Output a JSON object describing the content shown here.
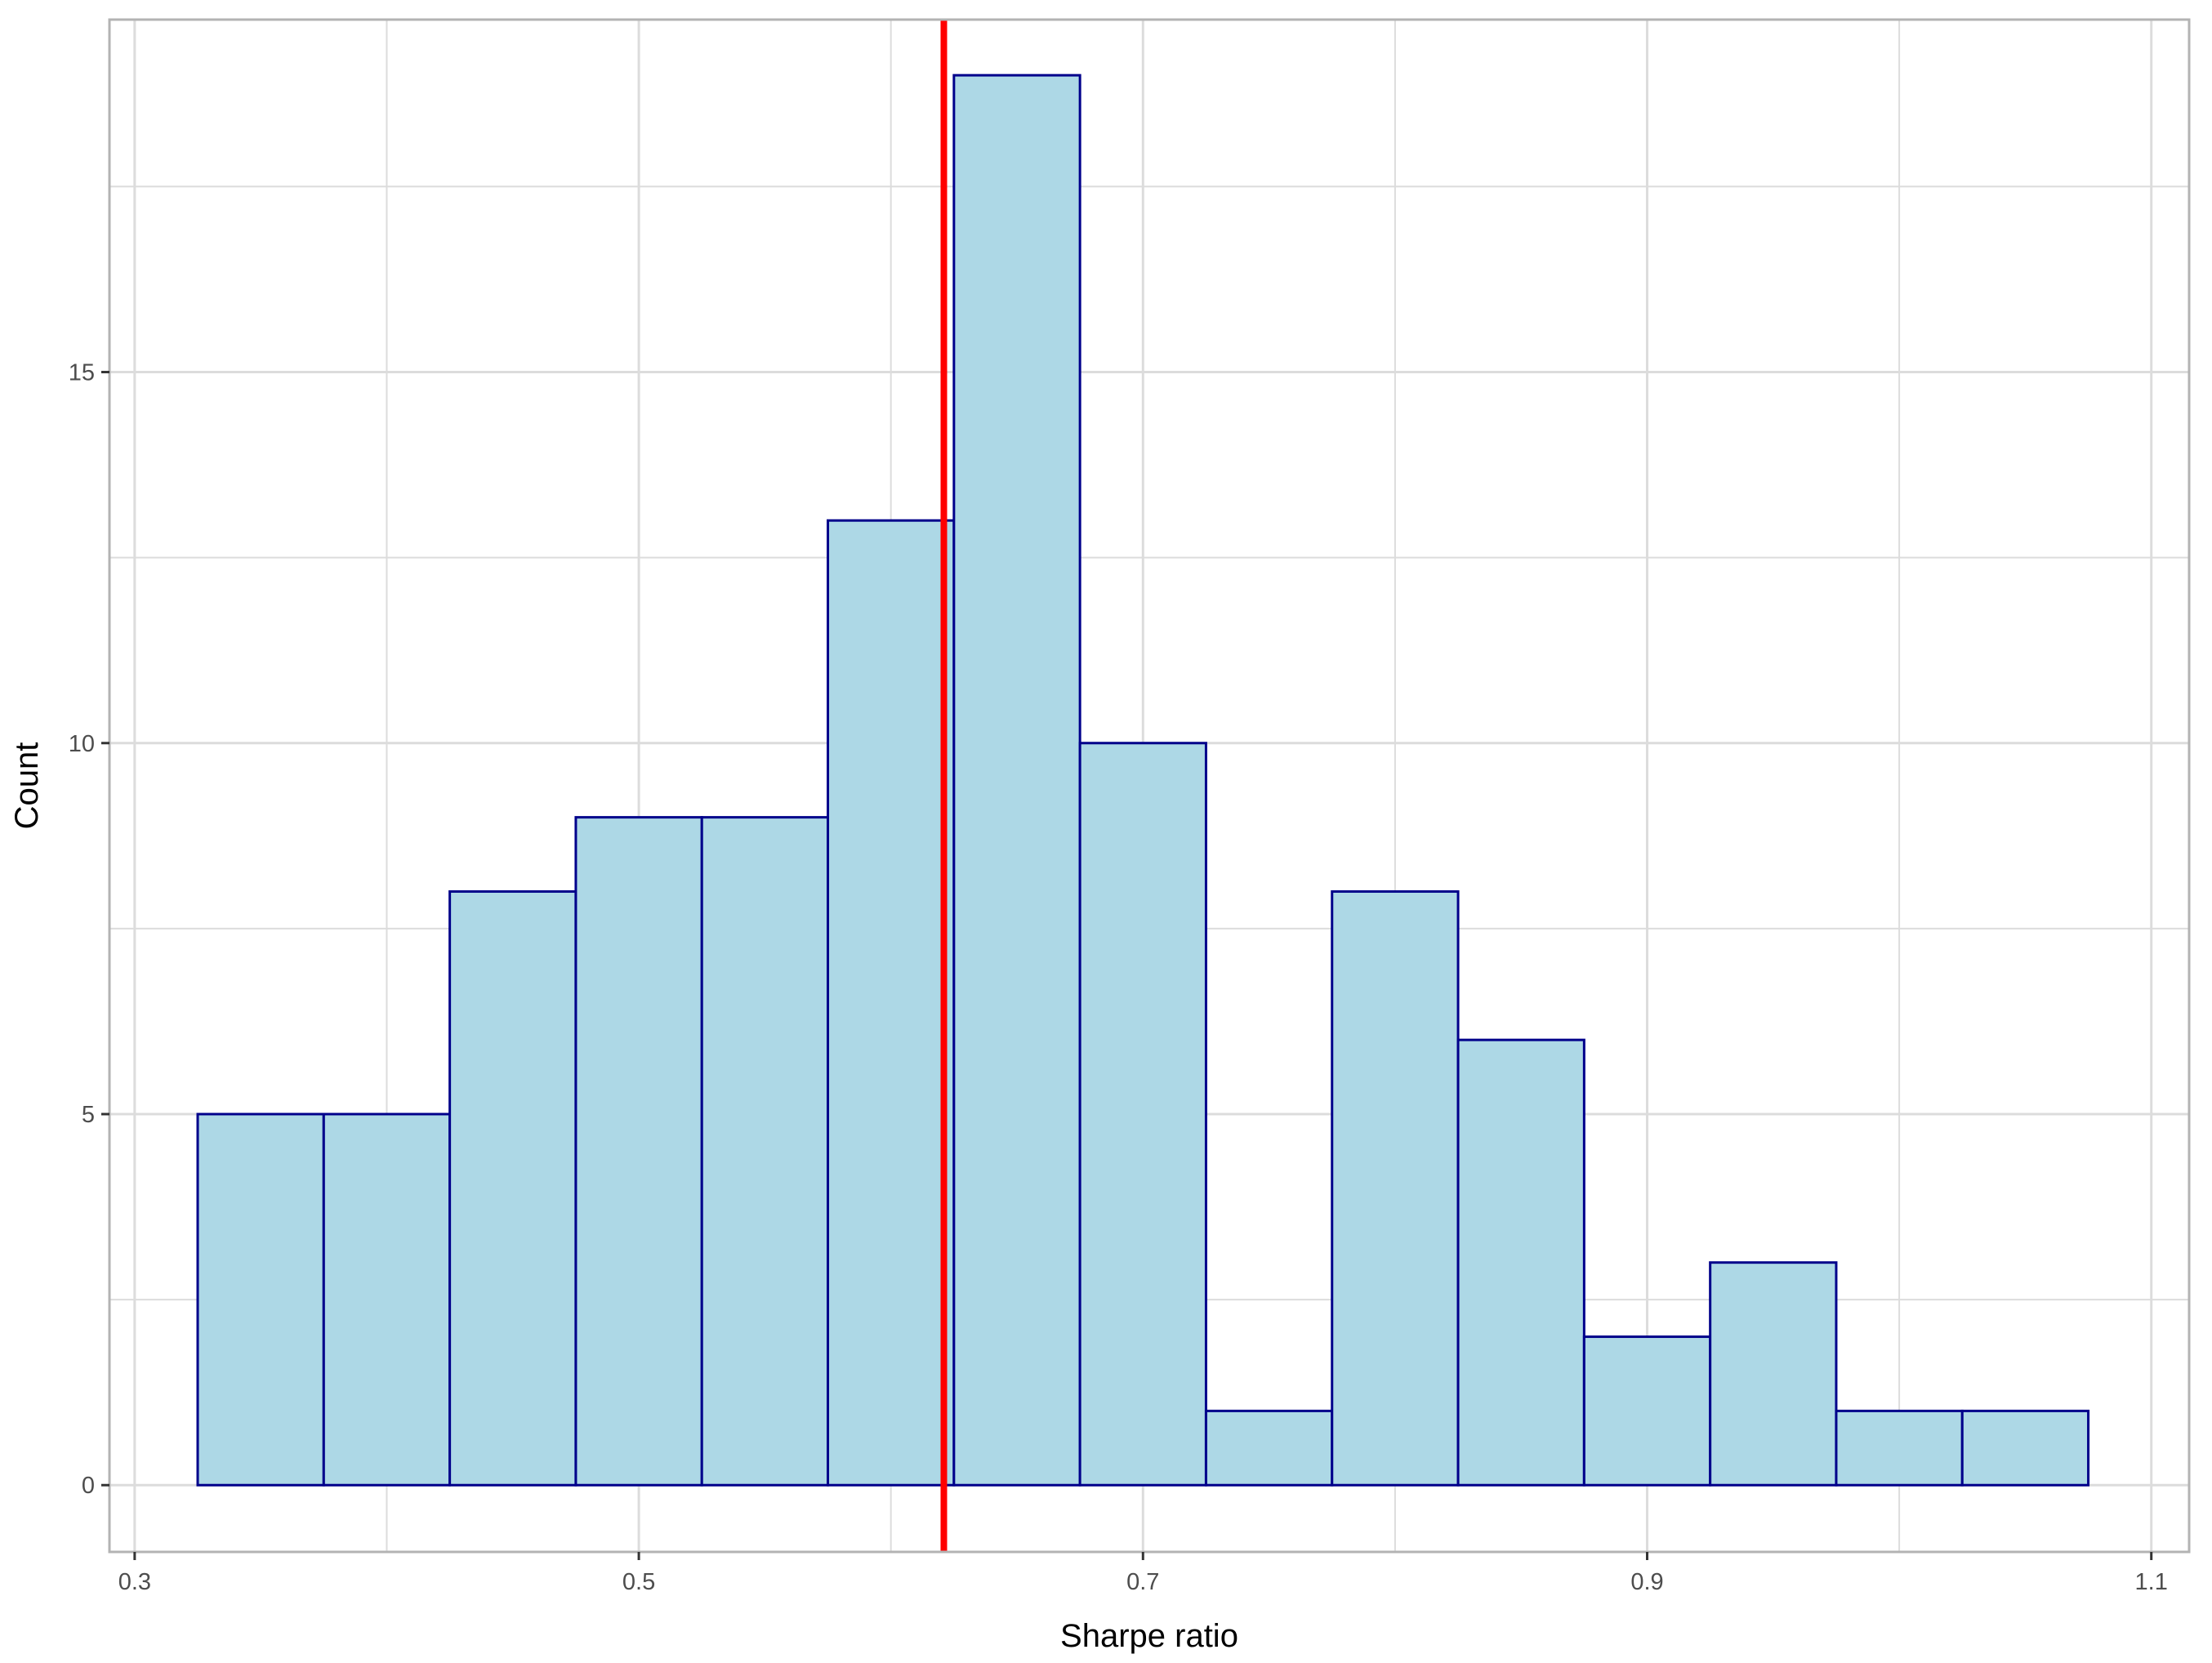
{
  "chart_data": {
    "type": "bar",
    "subtype": "histogram",
    "xlabel": "Sharpe ratio",
    "ylabel": "Count",
    "xlim": [
      0.29,
      1.115
    ],
    "ylim": [
      -0.9,
      19.75
    ],
    "x_ticks": [
      0.3,
      0.5,
      0.7,
      0.9,
      1.1
    ],
    "x_tick_labels": [
      "0.3",
      "0.5",
      "0.7",
      "0.9",
      "1.1"
    ],
    "x_minor_ticks": [
      0.4,
      0.6,
      0.8,
      1.0
    ],
    "y_ticks": [
      0,
      5,
      10,
      15
    ],
    "y_tick_labels": [
      "0",
      "5",
      "10",
      "15"
    ],
    "y_minor_ticks": [
      2.5,
      7.5,
      12.5,
      17.5
    ],
    "bin_width": 0.05,
    "bins": [
      {
        "x0": 0.325,
        "x1": 0.375,
        "count": 5
      },
      {
        "x0": 0.375,
        "x1": 0.425,
        "count": 5
      },
      {
        "x0": 0.425,
        "x1": 0.475,
        "count": 8
      },
      {
        "x0": 0.475,
        "x1": 0.525,
        "count": 9
      },
      {
        "x0": 0.525,
        "x1": 0.575,
        "count": 9
      },
      {
        "x0": 0.575,
        "x1": 0.625,
        "count": 13
      },
      {
        "x0": 0.625,
        "x1": 0.675,
        "count": 19
      },
      {
        "x0": 0.675,
        "x1": 0.725,
        "count": 10
      },
      {
        "x0": 0.725,
        "x1": 0.775,
        "count": 1
      },
      {
        "x0": 0.775,
        "x1": 0.825,
        "count": 8
      },
      {
        "x0": 0.825,
        "x1": 0.875,
        "count": 6
      },
      {
        "x0": 0.875,
        "x1": 0.925,
        "count": 2
      },
      {
        "x0": 0.925,
        "x1": 0.975,
        "count": 3
      },
      {
        "x0": 0.975,
        "x1": 1.025,
        "count": 1
      },
      {
        "x0": 1.025,
        "x1": 1.075,
        "count": 1
      }
    ],
    "reference_line": {
      "x": 0.621,
      "color": "#ff0000"
    },
    "colors": {
      "bar_fill": "#add8e6",
      "bar_stroke": "#00008b",
      "grid": "#dcdcdc",
      "panel_border": "#b3b3b3",
      "tick_text": "#4d4d4d"
    },
    "grid": true,
    "legend": "none"
  }
}
